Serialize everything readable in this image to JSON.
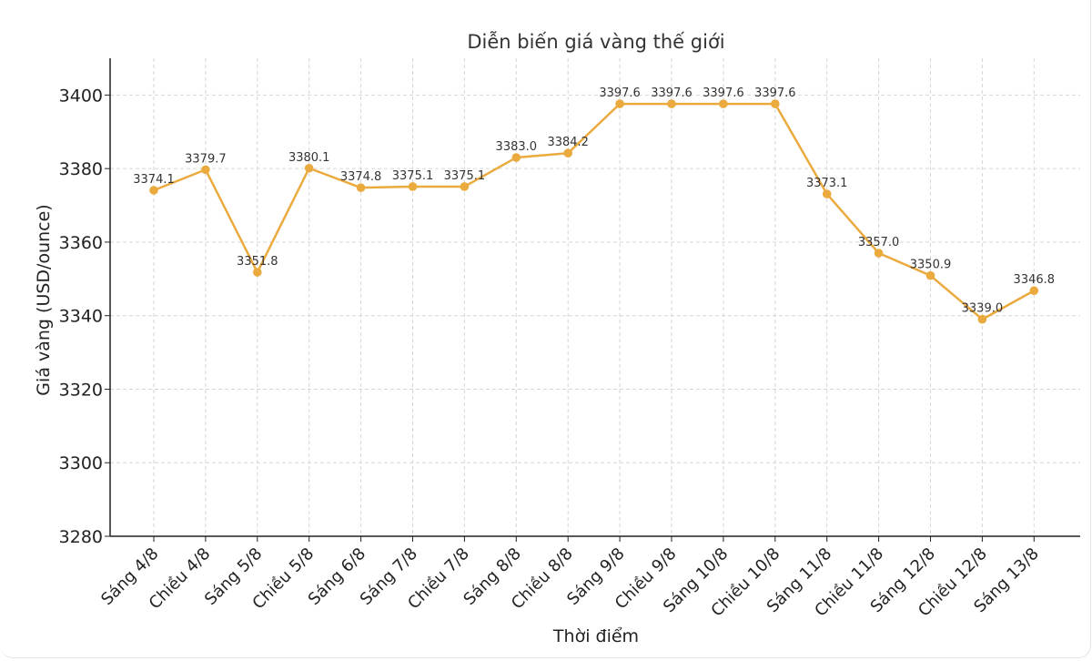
{
  "chart_data": {
    "type": "line",
    "title": "Diễn biến giá vàng thế giới",
    "xlabel": "Thời điểm",
    "ylabel": "Giá vàng (USD/ounce)",
    "ylim": [
      3280,
      3410
    ],
    "yticks": [
      3280,
      3300,
      3320,
      3340,
      3360,
      3380,
      3400
    ],
    "grid": true,
    "categories": [
      "Sáng 4/8",
      "Chiều 4/8",
      "Sáng 5/8",
      "Chiều 5/8",
      "Sáng 6/8",
      "Sáng 7/8",
      "Chiều 7/8",
      "Sáng 8/8",
      "Chiều 8/8",
      "Sáng 9/8",
      "Chiều 9/8",
      "Sáng 10/8",
      "Chiều 10/8",
      "Sáng 11/8",
      "Chiều 11/8",
      "Sáng 12/8",
      "Chiều 12/8",
      "Sáng 13/8"
    ],
    "series": [
      {
        "name": "Giá vàng",
        "color": "#EBAA3E",
        "values": [
          3374.1,
          3379.7,
          3351.8,
          3380.1,
          3374.8,
          3375.1,
          3375.1,
          3383.0,
          3384.2,
          3397.6,
          3397.6,
          3397.6,
          3397.6,
          3373.1,
          3357.0,
          3350.9,
          3339.0,
          3346.8
        ],
        "labels": [
          "3374.1",
          "3379.7",
          "3351.8",
          "3380.1",
          "3374.8",
          "3375.1",
          "3375.1",
          "3383.0",
          "3384.2",
          "3397.6",
          "3397.6",
          "3397.6",
          "3397.6",
          "3373.1",
          "3357.0",
          "3350.9",
          "3339.0",
          "3346.8"
        ]
      }
    ]
  }
}
